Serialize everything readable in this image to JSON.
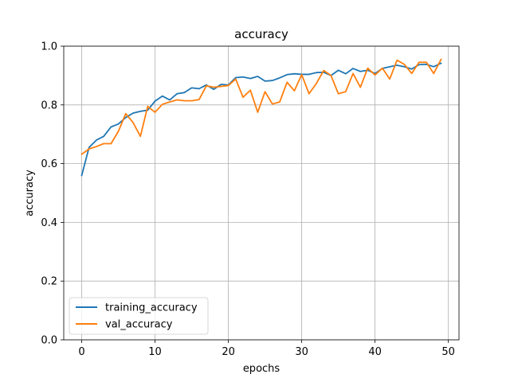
{
  "chart_data": {
    "type": "line",
    "title": "accuracy",
    "xlabel": "epochs",
    "ylabel": "accuracy",
    "xlim": [
      -2.45,
      51.45
    ],
    "ylim": [
      0.0,
      1.0
    ],
    "xticks": [
      0,
      10,
      20,
      30,
      40,
      50
    ],
    "xtick_labels": [
      "0",
      "10",
      "20",
      "30",
      "40",
      "50"
    ],
    "yticks": [
      0.0,
      0.2,
      0.4,
      0.6,
      0.8,
      1.0
    ],
    "ytick_labels": [
      "0.0",
      "0.2",
      "0.4",
      "0.6",
      "0.8",
      "1.0"
    ],
    "grid": true,
    "legend_position": "lower-left",
    "x": [
      0,
      1,
      2,
      3,
      4,
      5,
      6,
      7,
      8,
      9,
      10,
      11,
      12,
      13,
      14,
      15,
      16,
      17,
      18,
      19,
      20,
      21,
      22,
      23,
      24,
      25,
      26,
      27,
      28,
      29,
      30,
      31,
      32,
      33,
      34,
      35,
      36,
      37,
      38,
      39,
      40,
      41,
      42,
      43,
      44,
      45,
      46,
      47,
      48,
      49
    ],
    "series": [
      {
        "name": "training_accuracy",
        "color": "#1f77b4",
        "values": [
          0.56,
          0.655,
          0.68,
          0.693,
          0.725,
          0.735,
          0.757,
          0.772,
          0.778,
          0.782,
          0.813,
          0.83,
          0.817,
          0.838,
          0.842,
          0.858,
          0.855,
          0.868,
          0.853,
          0.87,
          0.868,
          0.893,
          0.895,
          0.89,
          0.897,
          0.881,
          0.883,
          0.892,
          0.903,
          0.906,
          0.904,
          0.904,
          0.91,
          0.911,
          0.9,
          0.918,
          0.906,
          0.924,
          0.914,
          0.918,
          0.907,
          0.924,
          0.93,
          0.935,
          0.93,
          0.922,
          0.937,
          0.938,
          0.93,
          0.942
        ]
      },
      {
        "name": "val_accuracy",
        "color": "#ff7f0e",
        "values": [
          0.632,
          0.65,
          0.658,
          0.668,
          0.668,
          0.71,
          0.77,
          0.74,
          0.693,
          0.795,
          0.775,
          0.802,
          0.81,
          0.817,
          0.814,
          0.814,
          0.818,
          0.865,
          0.86,
          0.863,
          0.866,
          0.888,
          0.826,
          0.85,
          0.775,
          0.845,
          0.803,
          0.81,
          0.877,
          0.848,
          0.903,
          0.838,
          0.873,
          0.917,
          0.9,
          0.838,
          0.845,
          0.907,
          0.86,
          0.925,
          0.902,
          0.925,
          0.888,
          0.952,
          0.938,
          0.907,
          0.945,
          0.945,
          0.907,
          0.955
        ]
      }
    ]
  }
}
